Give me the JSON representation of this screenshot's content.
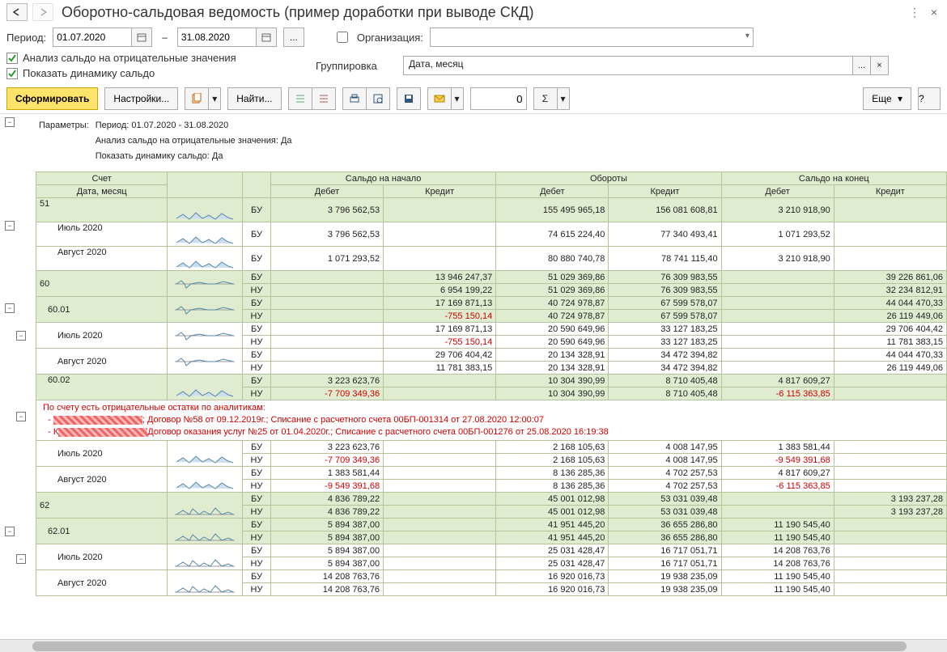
{
  "title": "Оборотно-сальдовая ведомость (пример доработки при выводе СКД)",
  "period_label": "Период:",
  "date_from": "01.07.2020",
  "date_to": "31.08.2020",
  "org_label": "Организация:",
  "group_label": "Группировка",
  "group_value": "Дата, месяц",
  "chk1": "Анализ сальдо на отрицательные значения",
  "chk2": "Показать динамику сальдо",
  "toolbar": {
    "form": "Сформировать",
    "settings": "Настройки...",
    "find": "Найти...",
    "num": "0",
    "more": "Еще"
  },
  "params_caption": "Параметры:",
  "params_lines": [
    "Период: 01.07.2020 - 31.08.2020",
    "Анализ сальдо на отрицательные значения: Да",
    "Показать динамику сальдо: Да"
  ],
  "colors": {
    "header_bg": "#e0ecd0",
    "border": "#b5c29a",
    "negative": "#d00000",
    "primary_btn": "#ffe36b"
  },
  "header": {
    "acct": "Счет",
    "date": "Дата, месяц",
    "start": "Сальдо на начало",
    "turn": "Обороты",
    "end": "Сальдо на конец",
    "debit": "Дебет",
    "credit": "Кредит"
  },
  "warn": {
    "title": "По счету есть отрицательные остатки по аналитикам:",
    "l1_tail": "; Договор №58 от 09.12.2019г.; Списание с расчетного счета 00БП-001314 от 27.08.2020 12:00:07",
    "l2_pre": "- К",
    "l2_tail": "Договор оказания услуг №25 от 01.04.2020г.; Списание с расчетного счета 00БП-001276 от 25.08.2020 16:19:38"
  },
  "rows": [
    {
      "type": "acc",
      "acct": "51",
      "bu": "БУ",
      "sd": "3 796 562,53",
      "sc": "",
      "td": "155 495 965,18",
      "tc": "156 081 608,81",
      "ed": "3 210 918,90",
      "ec": "",
      "spark": 1,
      "tall": 1
    },
    {
      "type": "month",
      "acct": "Июль 2020",
      "bu": "БУ",
      "sd": "3 796 562,53",
      "sc": "",
      "td": "74 615 224,40",
      "tc": "77 340 493,41",
      "ed": "1 071 293,52",
      "ec": "",
      "spark": 1,
      "tall": 1
    },
    {
      "type": "month",
      "acct": "Август 2020",
      "bu": "БУ",
      "sd": "1 071 293,52",
      "sc": "",
      "td": "80 880 740,78",
      "tc": "78 741 115,40",
      "ed": "3 210 918,90",
      "ec": "",
      "spark": 1,
      "tall": 1
    },
    {
      "type": "acc",
      "acct": "60",
      "bu": "БУ",
      "sd": "",
      "sc": "13 946 247,37",
      "td": "51 029 369,86",
      "tc": "76 309 983,55",
      "ed": "",
      "ec": "39 226 861,06",
      "spark": 2
    },
    {
      "type": "acc_nu",
      "bu": "НУ",
      "sd": "",
      "sc": "6 954 199,22",
      "td": "51 029 369,86",
      "tc": "76 309 983,55",
      "ed": "",
      "ec": "32 234 812,91"
    },
    {
      "type": "sub",
      "acct": "60.01",
      "bu": "БУ",
      "sd": "",
      "sc": "17 169 871,13",
      "td": "40 724 978,87",
      "tc": "67 599 578,07",
      "ed": "",
      "ec": "44 044 470,33",
      "spark": 2
    },
    {
      "type": "sub_nu",
      "bu": "НУ",
      "sd": "",
      "sc": "-755 150,14",
      "td": "40 724 978,87",
      "tc": "67 599 578,07",
      "ed": "",
      "ec": "26 119 449,06"
    },
    {
      "type": "month",
      "acct": "Июль 2020",
      "bu": "БУ",
      "sd": "",
      "sc": "17 169 871,13",
      "td": "20 590 649,96",
      "tc": "33 127 183,25",
      "ed": "",
      "ec": "29 706 404,42",
      "spark": 2
    },
    {
      "type": "month_nu",
      "bu": "НУ",
      "sd": "",
      "sc": "-755 150,14",
      "td": "20 590 649,96",
      "tc": "33 127 183,25",
      "ed": "",
      "ec": "11 781 383,15"
    },
    {
      "type": "month",
      "acct": "Август 2020",
      "bu": "БУ",
      "sd": "",
      "sc": "29 706 404,42",
      "td": "20 134 328,91",
      "tc": "34 472 394,82",
      "ed": "",
      "ec": "44 044 470,33",
      "spark": 2
    },
    {
      "type": "month_nu",
      "bu": "НУ",
      "sd": "",
      "sc": "11 781 383,15",
      "td": "20 134 328,91",
      "tc": "34 472 394,82",
      "ed": "",
      "ec": "26 119 449,06"
    },
    {
      "type": "sub",
      "acct": "60.02",
      "bu": "БУ",
      "sd": "3 223 623,76",
      "sc": "",
      "td": "10 304 390,99",
      "tc": "8 710 405,48",
      "ed": "4 817 609,27",
      "ec": "",
      "spark": 1,
      "tall": 1
    },
    {
      "type": "sub_nu",
      "bu": "НУ",
      "sd": "-7 709 349,36",
      "sc": "",
      "td": "10 304 390,99",
      "tc": "8 710 405,48",
      "ed": "-6 115 363,85",
      "ec": ""
    },
    {
      "type": "warn"
    },
    {
      "type": "month",
      "acct": "Июль 2020",
      "bu": "БУ",
      "sd": "3 223 623,76",
      "sc": "",
      "td": "2 168 105,63",
      "tc": "4 008 147,95",
      "ed": "1 383 581,44",
      "ec": "",
      "spark": 1
    },
    {
      "type": "month_nu",
      "bu": "НУ",
      "sd": "-7 709 349,36",
      "sc": "",
      "td": "2 168 105,63",
      "tc": "4 008 147,95",
      "ed": "-9 549 391,68",
      "ec": ""
    },
    {
      "type": "month",
      "acct": "Август 2020",
      "bu": "БУ",
      "sd": "1 383 581,44",
      "sc": "",
      "td": "8 136 285,36",
      "tc": "4 702 257,53",
      "ed": "4 817 609,27",
      "ec": "",
      "spark": 1
    },
    {
      "type": "month_nu",
      "bu": "НУ",
      "sd": "-9 549 391,68",
      "sc": "",
      "td": "8 136 285,36",
      "tc": "4 702 257,53",
      "ed": "-6 115 363,85",
      "ec": ""
    },
    {
      "type": "acc",
      "acct": "62",
      "bu": "БУ",
      "sd": "4 836 789,22",
      "sc": "",
      "td": "45 001 012,98",
      "tc": "53 031 039,48",
      "ed": "",
      "ec": "3 193 237,28",
      "spark": 3
    },
    {
      "type": "acc_nu",
      "bu": "НУ",
      "sd": "4 836 789,22",
      "sc": "",
      "td": "45 001 012,98",
      "tc": "53 031 039,48",
      "ed": "",
      "ec": "3 193 237,28"
    },
    {
      "type": "sub",
      "acct": "62.01",
      "bu": "БУ",
      "sd": "5 894 387,00",
      "sc": "",
      "td": "41 951 445,20",
      "tc": "36 655 286,80",
      "ed": "11 190 545,40",
      "ec": "",
      "spark": 3
    },
    {
      "type": "sub_nu",
      "bu": "НУ",
      "sd": "5 894 387,00",
      "sc": "",
      "td": "41 951 445,20",
      "tc": "36 655 286,80",
      "ed": "11 190 545,40",
      "ec": ""
    },
    {
      "type": "month",
      "acct": "Июль 2020",
      "bu": "БУ",
      "sd": "5 894 387,00",
      "sc": "",
      "td": "25 031 428,47",
      "tc": "16 717 051,71",
      "ed": "14 208 763,76",
      "ec": "",
      "spark": 3
    },
    {
      "type": "month_nu",
      "bu": "НУ",
      "sd": "5 894 387,00",
      "sc": "",
      "td": "25 031 428,47",
      "tc": "16 717 051,71",
      "ed": "14 208 763,76",
      "ec": ""
    },
    {
      "type": "month",
      "acct": "Август 2020",
      "bu": "БУ",
      "sd": "14 208 763,76",
      "sc": "",
      "td": "16 920 016,73",
      "tc": "19 938 235,09",
      "ed": "11 190 545,40",
      "ec": "",
      "spark": 3
    },
    {
      "type": "month_nu",
      "bu": "НУ",
      "sd": "14 208 763,76",
      "sc": "",
      "td": "16 920 016,73",
      "tc": "19 938 235,09",
      "ed": "11 190 545,40",
      "ec": ""
    }
  ]
}
